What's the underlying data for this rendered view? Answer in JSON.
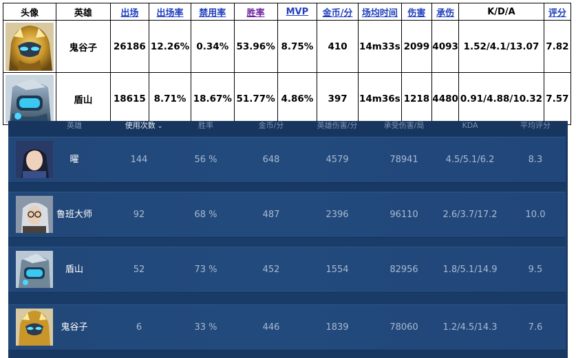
{
  "top_table": {
    "headers": [
      {
        "label": "头像",
        "style": "plain"
      },
      {
        "label": "英雄",
        "style": "plain"
      },
      {
        "label": "出场",
        "style": "link"
      },
      {
        "label": "出场率",
        "style": "link"
      },
      {
        "label": "禁用率",
        "style": "link"
      },
      {
        "label": "胜率",
        "style": "visited"
      },
      {
        "label": "MVP",
        "style": "link"
      },
      {
        "label": "金币/分",
        "style": "link"
      },
      {
        "label": "场均时间",
        "style": "link"
      },
      {
        "label": "伤害",
        "style": "link"
      },
      {
        "label": "承伤",
        "style": "link"
      },
      {
        "label": "K/D/A",
        "style": "plain"
      },
      {
        "label": "评分",
        "style": "link"
      }
    ],
    "rows": [
      {
        "avatar": "guiguzi-portrait",
        "hero": "鬼谷子",
        "appearances": "26186",
        "pick_rate": "12.26%",
        "ban_rate": "0.34%",
        "win_rate": "53.96%",
        "mvp": "8.75%",
        "gold_per_min": "410",
        "avg_time": "14m33s",
        "damage": "2099",
        "damage_taken": "4093",
        "kda": "1.52/4.1/13.07",
        "score": "7.82"
      },
      {
        "avatar": "dunshan-portrait",
        "hero": "盾山",
        "appearances": "18615",
        "pick_rate": "8.71%",
        "ban_rate": "18.67%",
        "win_rate": "51.77%",
        "mvp": "4.86%",
        "gold_per_min": "397",
        "avg_time": "14m36s",
        "damage": "1218",
        "damage_taken": "4480",
        "kda": "0.91/4.88/10.32",
        "score": "7.57"
      }
    ]
  },
  "panel": {
    "headers": {
      "hero": "英雄",
      "uses": "使用次数",
      "uses_sort_icon": "chevron-down-icon",
      "win_rate": "胜率",
      "gold": "金币/分",
      "damage": "英雄伤害/分",
      "taken": "承受伤害/局",
      "kda": "KDA",
      "score": "平均评分"
    },
    "rows": [
      {
        "avatar": "yao-portrait",
        "hero": "曜",
        "uses": "144",
        "win_rate": "56 %",
        "gold": "648",
        "damage": "4579",
        "taken": "78941",
        "kda": "4.5/5.1/6.2",
        "score": "8.3"
      },
      {
        "avatar": "luban-dashi-portrait",
        "hero": "鲁班大师",
        "uses": "92",
        "win_rate": "68 %",
        "gold": "487",
        "damage": "2396",
        "taken": "96110",
        "kda": "2.6/3.7/17.2",
        "score": "10.0"
      },
      {
        "avatar": "dunshan-portrait",
        "hero": "盾山",
        "uses": "52",
        "win_rate": "73 %",
        "gold": "452",
        "damage": "1554",
        "taken": "82956",
        "kda": "1.8/5.1/14.9",
        "score": "9.5"
      },
      {
        "avatar": "guiguzi-portrait",
        "hero": "鬼谷子",
        "uses": "6",
        "win_rate": "33 %",
        "gold": "446",
        "damage": "1839",
        "taken": "78060",
        "kda": "1.2/4.5/14.3",
        "score": "7.6"
      }
    ]
  },
  "colors": {
    "link": "#1f3fbf",
    "visited": "#6f1f9f",
    "panel_bg": "#1a3d6a",
    "row_bg": "#234a7c",
    "header_text": "#7d93b2",
    "cell_text": "#a8bad2"
  }
}
